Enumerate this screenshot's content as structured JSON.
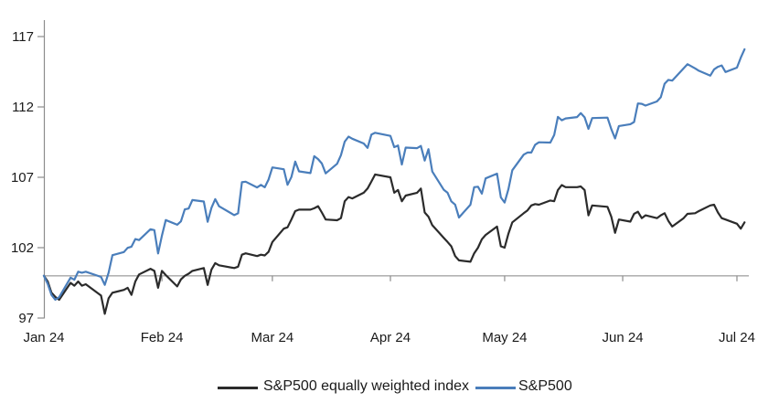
{
  "chart_data": {
    "type": "line",
    "title": "",
    "xlabel": "",
    "ylabel": "",
    "grid": false,
    "legend_position": "bottom",
    "axis_color": "#8c8c8c",
    "baseline_color": "#a6a6a6",
    "baseline_value": 100,
    "y_axis": {
      "ticks": [
        97,
        102,
        107,
        112,
        117
      ],
      "min": 97,
      "max": 117.2
    },
    "x_axis": {
      "tick_labels": [
        "Jan 24",
        "Feb 24",
        "Mar 24",
        "Apr 24",
        "May 24",
        "Jun 24",
        "Jul 24"
      ],
      "tick_days_of_year": [
        1,
        32,
        61,
        92,
        122,
        153,
        183
      ]
    },
    "days_of_year": [
      1,
      2,
      3,
      4,
      5,
      8,
      9,
      10,
      11,
      12,
      16,
      17,
      18,
      19,
      22,
      23,
      24,
      25,
      26,
      29,
      30,
      31,
      32,
      33,
      36,
      37,
      38,
      39,
      40,
      43,
      44,
      45,
      46,
      47,
      51,
      52,
      53,
      54,
      57,
      58,
      59,
      60,
      61,
      64,
      65,
      66,
      67,
      68,
      71,
      72,
      73,
      74,
      75,
      78,
      79,
      80,
      81,
      82,
      85,
      86,
      87,
      88,
      92,
      93,
      94,
      95,
      96,
      99,
      100,
      101,
      102,
      103,
      106,
      107,
      108,
      109,
      110,
      113,
      114,
      115,
      116,
      117,
      120,
      121,
      122,
      123,
      124,
      127,
      128,
      129,
      130,
      131,
      134,
      135,
      136,
      137,
      138,
      141,
      142,
      143,
      144,
      145,
      149,
      150,
      151,
      152,
      155,
      156,
      157,
      158,
      159,
      162,
      163,
      164,
      165,
      166,
      169,
      170,
      172,
      173,
      176,
      177,
      178,
      179,
      180,
      183,
      184,
      185
    ],
    "series": [
      {
        "name": "S&P500 equally weighted index",
        "color": "#2b2b2b",
        "values": [
          100,
          99.6,
          98.8,
          98.5,
          98.3,
          99.5,
          99.3,
          99.6,
          99.3,
          99.4,
          98.6,
          97.3,
          98.4,
          98.8,
          99.0,
          99.15,
          98.65,
          99.6,
          100.1,
          100.5,
          100.35,
          99.15,
          100.35,
          100.05,
          99.25,
          99.75,
          100.0,
          100.15,
          100.35,
          100.55,
          99.35,
          100.45,
          100.9,
          100.75,
          100.55,
          100.65,
          101.5,
          101.6,
          101.4,
          101.5,
          101.45,
          101.7,
          102.4,
          103.35,
          103.45,
          104.0,
          104.6,
          104.7,
          104.7,
          104.8,
          104.95,
          104.5,
          104.0,
          103.95,
          104.1,
          105.3,
          105.6,
          105.5,
          105.9,
          106.2,
          106.7,
          107.2,
          107.0,
          105.9,
          106.1,
          105.3,
          105.7,
          105.9,
          106.2,
          104.5,
          104.2,
          103.6,
          102.7,
          102.4,
          102.1,
          101.4,
          101.1,
          101.0,
          101.6,
          102.0,
          102.6,
          102.9,
          103.5,
          102.1,
          102.0,
          103.0,
          103.8,
          104.45,
          104.65,
          105.0,
          105.1,
          105.05,
          105.35,
          105.3,
          106.1,
          106.45,
          106.3,
          106.3,
          106.35,
          106.1,
          104.3,
          105.0,
          104.9,
          104.2,
          103.05,
          104.0,
          103.85,
          104.4,
          104.55,
          104.1,
          104.3,
          104.1,
          104.3,
          104.45,
          103.9,
          103.5,
          104.1,
          104.4,
          104.45,
          104.6,
          105.0,
          105.05,
          104.5,
          104.1,
          104.0,
          103.7,
          103.35,
          103.8
        ]
      },
      {
        "name": "S&P500",
        "color": "#4a7ebb",
        "values": [
          100,
          99.43,
          98.64,
          98.3,
          98.48,
          99.87,
          99.72,
          100.29,
          100.22,
          100.29,
          99.92,
          99.36,
          100.23,
          101.47,
          101.69,
          101.99,
          102.07,
          102.61,
          102.54,
          103.31,
          103.25,
          101.59,
          102.86,
          103.96,
          103.63,
          103.87,
          104.72,
          104.78,
          105.38,
          105.28,
          103.84,
          104.84,
          105.45,
          104.94,
          104.31,
          104.44,
          106.65,
          106.69,
          106.28,
          106.46,
          106.29,
          106.84,
          107.7,
          107.57,
          106.47,
          107.02,
          108.12,
          107.42,
          107.3,
          108.5,
          108.29,
          107.98,
          107.28,
          107.96,
          108.57,
          109.53,
          109.89,
          109.74,
          109.4,
          109.09,
          110.03,
          110.16,
          109.94,
          109.14,
          109.26,
          107.91,
          109.11,
          109.07,
          109.23,
          108.19,
          109.0,
          107.41,
          106.12,
          105.9,
          105.29,
          105.06,
          104.14,
          105.05,
          106.3,
          106.33,
          105.84,
          106.92,
          107.26,
          105.57,
          105.21,
          106.17,
          107.5,
          108.61,
          108.76,
          108.76,
          109.31,
          109.49,
          109.47,
          110.0,
          111.29,
          111.05,
          111.18,
          111.28,
          111.56,
          111.26,
          110.44,
          111.21,
          111.24,
          110.42,
          109.76,
          110.64,
          110.77,
          110.93,
          112.25,
          112.22,
          112.1,
          112.39,
          112.69,
          113.65,
          113.92,
          113.87,
          114.75,
          115.04,
          114.74,
          114.57,
          114.22,
          114.67,
          114.85,
          114.95,
          114.48,
          114.79,
          115.5,
          116.1
        ]
      }
    ]
  }
}
